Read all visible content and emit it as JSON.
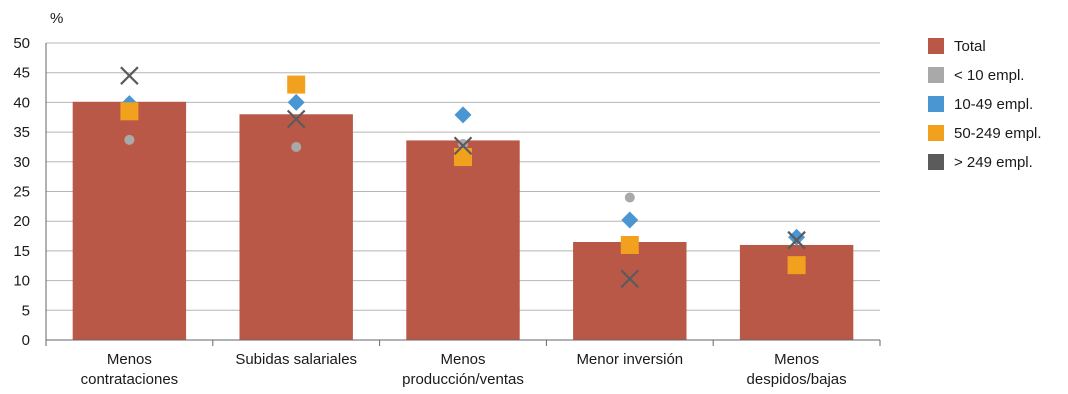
{
  "chart_data": {
    "type": "bar",
    "unit_label": "%",
    "ylim": [
      0,
      50
    ],
    "y_ticks": [
      0,
      5,
      10,
      15,
      20,
      25,
      30,
      35,
      40,
      45,
      50
    ],
    "grid": true,
    "legend_position": "right",
    "categories": [
      [
        "Menos",
        "contrataciones"
      ],
      [
        "Subidas salariales"
      ],
      [
        "Menos",
        "producción/ventas"
      ],
      [
        "Menor inversión"
      ],
      [
        "Menos",
        "despidos/bajas"
      ]
    ],
    "series": [
      {
        "name": "Total",
        "kind": "bar",
        "marker": "bar",
        "color": "#b95846",
        "values": [
          40.1,
          38.0,
          33.6,
          16.5,
          16.0
        ]
      },
      {
        "name": "< 10 empl.",
        "kind": "marker",
        "marker": "circle",
        "color": "#a9a9a9",
        "values": [
          33.7,
          32.5,
          33.0,
          24.0,
          17.0
        ]
      },
      {
        "name": "10-49 empl.",
        "kind": "marker",
        "marker": "diamond",
        "color": "#4a96d2",
        "values": [
          39.8,
          40.0,
          37.9,
          20.2,
          17.3
        ]
      },
      {
        "name": "50-249 empl.",
        "kind": "marker",
        "marker": "square",
        "color": "#f2a11f",
        "values": [
          38.5,
          43.0,
          30.8,
          16.0,
          12.6
        ]
      },
      {
        "name": "> 249 empl.",
        "kind": "marker",
        "marker": "x",
        "color": "#5b5b5b",
        "values": [
          44.5,
          37.2,
          32.7,
          10.3,
          16.8
        ]
      }
    ]
  }
}
